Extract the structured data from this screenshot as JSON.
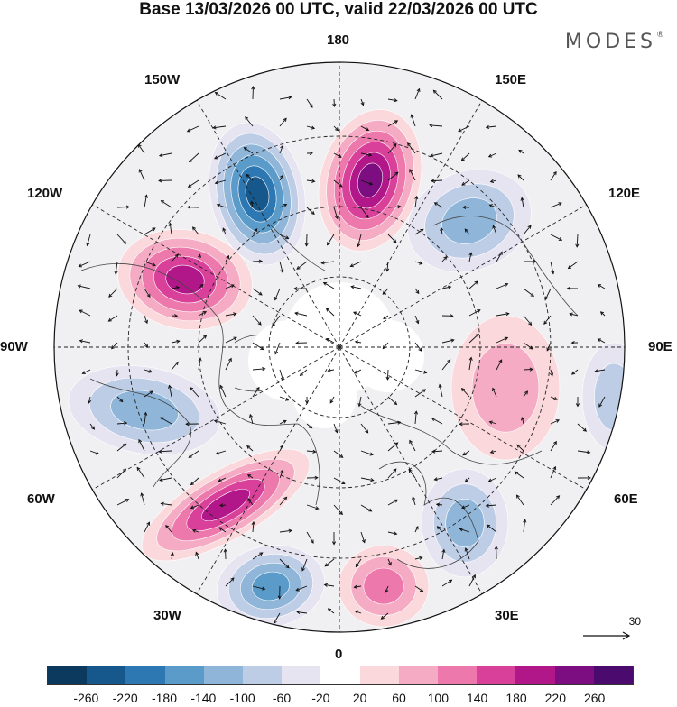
{
  "title": "Base 13/03/2026 00 UTC, valid 22/03/2026 00 UTC",
  "brand": "MODES",
  "brand_mark": "®",
  "longitude_labels": {
    "top": "180",
    "bottom": "0",
    "left": "90W",
    "right": "90E",
    "upper_left": "150W",
    "upper_right": "150E",
    "mid_upper_left": "120W",
    "mid_upper_right": "120E",
    "mid_lower_left": "60W",
    "mid_lower_right": "60E",
    "lower_left": "30W",
    "lower_right": "30E"
  },
  "reference_vector_label": "30",
  "colorbar": {
    "colors": [
      "#0b3a5e",
      "#16588c",
      "#2d78b2",
      "#5a9bca",
      "#8fb6d9",
      "#bdcde6",
      "#e6e4f1",
      "#ffffff",
      "#fad8dc",
      "#f4abc3",
      "#ec78ac",
      "#d9409a",
      "#b2178a",
      "#7d0e82",
      "#4a0a6e"
    ],
    "tick_labels": [
      "-260",
      "-220",
      "-180",
      "-140",
      "-100",
      "-60",
      "-20",
      "20",
      "60",
      "100",
      "140",
      "180",
      "220",
      "260"
    ]
  },
  "anomalies": [
    {
      "name": "pacific-low-west",
      "value": -240
    },
    {
      "name": "pacific-high-east",
      "value": 240
    },
    {
      "name": "siberia-low",
      "value": -150
    },
    {
      "name": "alaska-canada-high",
      "value": 230
    },
    {
      "name": "hudson-low",
      "value": -120
    },
    {
      "name": "atlantic-high",
      "value": 200
    },
    {
      "name": "greenland-sea-low",
      "value": -180
    },
    {
      "name": "europe-high",
      "value": 120
    },
    {
      "name": "scandinavia-low",
      "value": -130
    },
    {
      "name": "central-asia-high",
      "value": 80
    },
    {
      "name": "east-asia-low",
      "value": -110
    }
  ]
}
